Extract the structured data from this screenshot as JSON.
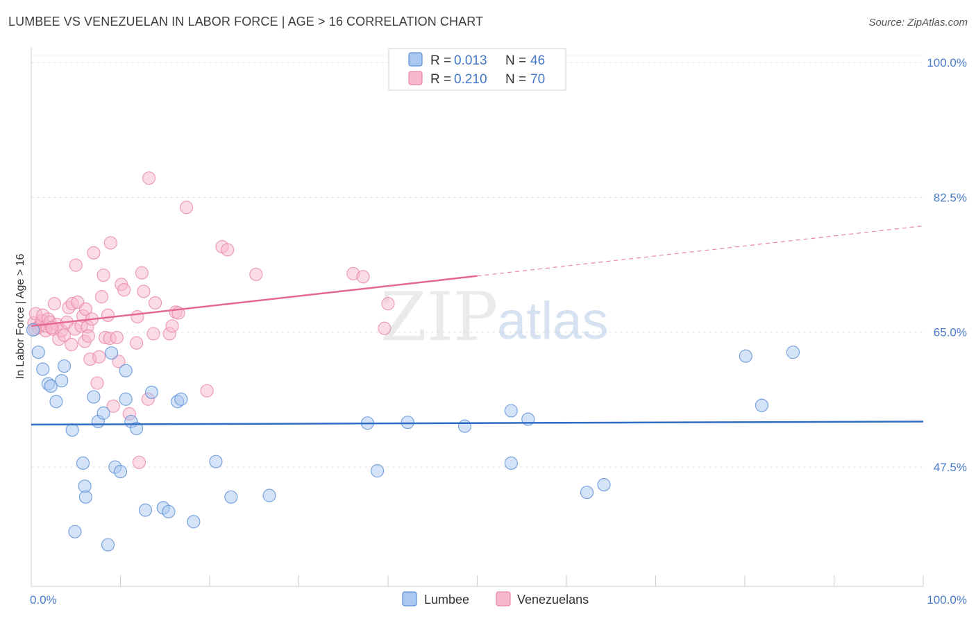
{
  "header": {
    "title": "LUMBEE VS VENEZUELAN IN LABOR FORCE | AGE > 16 CORRELATION CHART",
    "source": "Source: ZipAtlas.com"
  },
  "watermark": {
    "zip": "ZIP",
    "atlas": "atlas"
  },
  "legend": {
    "rows": [
      {
        "r_label": "R =",
        "r_value": "0.013",
        "n_label": "N =",
        "n_value": "46"
      },
      {
        "r_label": "R =",
        "r_value": "0.210",
        "n_label": "N =",
        "n_value": "70"
      }
    ]
  },
  "bottom_legend": [
    "Lumbee",
    "Venezuelans"
  ],
  "colors": {
    "lumbee_fill": "#aac8f0",
    "lumbee_stroke": "#5b8fd6",
    "lumbee_line": "#2f6cc4",
    "venez_fill": "#f7b8cb",
    "venez_stroke": "#e887a6",
    "venez_line": "#e4688f",
    "grid": "#e3e3e3",
    "tick_label": "#4a7cc9"
  },
  "chart_data": {
    "type": "scatter",
    "title": "LUMBEE VS VENEZUELAN IN LABOR FORCE | AGE > 16 CORRELATION CHART",
    "ylabel": "In Labor Force | Age > 16",
    "xlabel": "",
    "xlim": [
      0,
      100
    ],
    "ylim": [
      32,
      102
    ],
    "x_tick_labels": [
      "0.0%",
      "100.0%"
    ],
    "y_ticks": [
      47.5,
      65.0,
      82.5,
      100.0
    ],
    "y_tick_labels": [
      "47.5%",
      "65.0%",
      "82.5%",
      "100.0%"
    ],
    "grid": true,
    "legend_position": "top-center",
    "series": [
      {
        "name": "Lumbee",
        "r": 0.013,
        "n": 46,
        "trend": {
          "x": [
            0,
            100
          ],
          "y": [
            53.0,
            53.4
          ],
          "solid_until": 100
        },
        "points": [
          [
            0.2,
            65.3
          ],
          [
            0.8,
            62.4
          ],
          [
            1.3,
            60.2
          ],
          [
            1.9,
            58.3
          ],
          [
            2.2,
            58.0
          ],
          [
            2.8,
            56.0
          ],
          [
            3.4,
            58.7
          ],
          [
            3.7,
            60.6
          ],
          [
            4.6,
            52.3
          ],
          [
            5.8,
            48.0
          ],
          [
            6.0,
            45.0
          ],
          [
            7.0,
            56.6
          ],
          [
            7.5,
            53.4
          ],
          [
            8.1,
            54.5
          ],
          [
            8.6,
            37.4
          ],
          [
            9.0,
            62.3
          ],
          [
            9.4,
            47.5
          ],
          [
            10.0,
            46.9
          ],
          [
            10.6,
            60.0
          ],
          [
            10.6,
            56.3
          ],
          [
            11.2,
            53.4
          ],
          [
            11.8,
            52.5
          ],
          [
            12.8,
            41.9
          ],
          [
            13.5,
            57.2
          ],
          [
            14.8,
            42.2
          ],
          [
            15.4,
            41.7
          ],
          [
            16.4,
            56.0
          ],
          [
            16.8,
            56.3
          ],
          [
            18.2,
            40.4
          ],
          [
            20.7,
            48.2
          ],
          [
            22.4,
            43.6
          ],
          [
            26.7,
            43.8
          ],
          [
            37.7,
            53.2
          ],
          [
            38.8,
            47.0
          ],
          [
            42.2,
            53.3
          ],
          [
            48.6,
            52.8
          ],
          [
            53.8,
            54.8
          ],
          [
            55.7,
            53.7
          ],
          [
            53.8,
            48.0
          ],
          [
            62.3,
            44.2
          ],
          [
            64.2,
            45.2
          ],
          [
            80.1,
            61.9
          ],
          [
            85.4,
            62.4
          ],
          [
            81.9,
            55.5
          ],
          [
            6.1,
            43.6
          ],
          [
            4.9,
            39.1
          ]
        ]
      },
      {
        "name": "Venezuelans",
        "r": 0.21,
        "n": 70,
        "trend": {
          "x": [
            0,
            100
          ],
          "y": [
            65.8,
            78.8
          ],
          "solid_until": 50
        },
        "points": [
          [
            0.3,
            66.2
          ],
          [
            0.5,
            67.4
          ],
          [
            0.8,
            65.6
          ],
          [
            1.0,
            65.9
          ],
          [
            1.2,
            66.5
          ],
          [
            1.3,
            67.2
          ],
          [
            1.6,
            65.2
          ],
          [
            1.7,
            65.8
          ],
          [
            1.9,
            66.7
          ],
          [
            2.1,
            66.3
          ],
          [
            2.4,
            65.4
          ],
          [
            2.6,
            68.7
          ],
          [
            2.9,
            66.0
          ],
          [
            3.1,
            64.1
          ],
          [
            3.4,
            65.2
          ],
          [
            3.7,
            64.6
          ],
          [
            4.0,
            66.3
          ],
          [
            4.2,
            68.2
          ],
          [
            4.5,
            63.4
          ],
          [
            4.6,
            68.7
          ],
          [
            4.9,
            65.4
          ],
          [
            5.0,
            73.7
          ],
          [
            5.2,
            68.9
          ],
          [
            5.6,
            65.8
          ],
          [
            5.8,
            67.1
          ],
          [
            6.0,
            63.8
          ],
          [
            6.1,
            68.0
          ],
          [
            6.3,
            65.7
          ],
          [
            6.4,
            64.5
          ],
          [
            6.6,
            61.5
          ],
          [
            6.8,
            66.7
          ],
          [
            7.0,
            75.3
          ],
          [
            7.4,
            58.4
          ],
          [
            7.6,
            61.8
          ],
          [
            7.9,
            69.6
          ],
          [
            8.1,
            72.4
          ],
          [
            8.3,
            64.3
          ],
          [
            8.6,
            67.2
          ],
          [
            8.8,
            64.2
          ],
          [
            8.9,
            76.6
          ],
          [
            9.2,
            55.4
          ],
          [
            9.6,
            64.3
          ],
          [
            9.8,
            61.2
          ],
          [
            10.1,
            71.2
          ],
          [
            10.4,
            70.5
          ],
          [
            11.0,
            54.4
          ],
          [
            11.8,
            63.6
          ],
          [
            11.9,
            67.0
          ],
          [
            12.1,
            48.1
          ],
          [
            12.4,
            72.7
          ],
          [
            12.6,
            70.3
          ],
          [
            13.1,
            56.3
          ],
          [
            13.2,
            85.0
          ],
          [
            13.7,
            64.8
          ],
          [
            13.9,
            68.8
          ],
          [
            15.5,
            64.8
          ],
          [
            15.8,
            65.8
          ],
          [
            16.2,
            67.6
          ],
          [
            16.5,
            67.5
          ],
          [
            17.4,
            81.2
          ],
          [
            19.7,
            57.4
          ],
          [
            21.4,
            76.1
          ],
          [
            22.0,
            75.7
          ],
          [
            25.2,
            72.5
          ],
          [
            36.1,
            72.6
          ],
          [
            37.2,
            72.2
          ],
          [
            40.0,
            68.7
          ],
          [
            39.6,
            65.5
          ],
          [
            0.4,
            65.4
          ],
          [
            2.3,
            65.6
          ]
        ]
      }
    ]
  }
}
